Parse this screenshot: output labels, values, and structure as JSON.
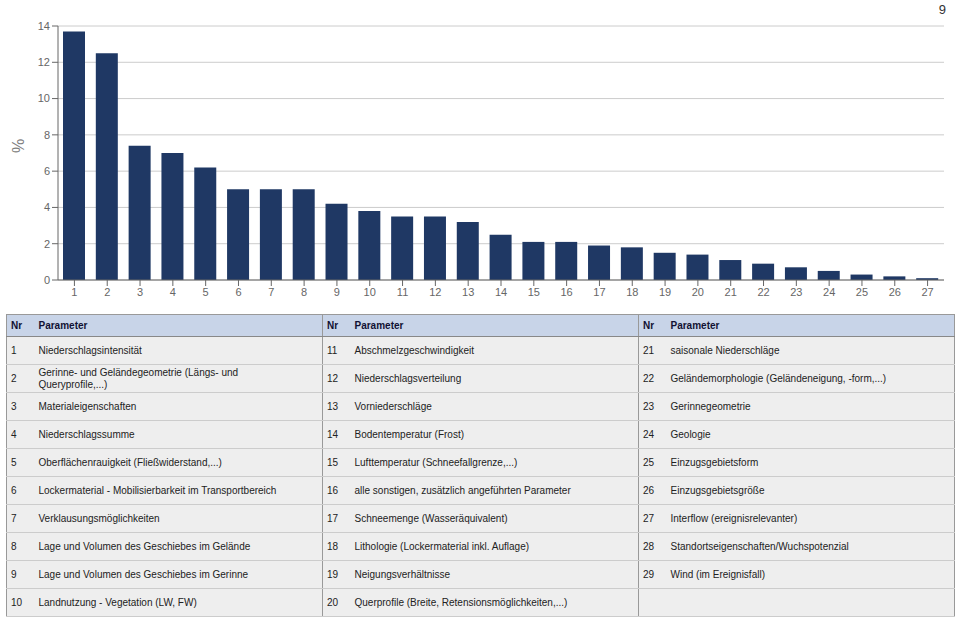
{
  "chart_data": {
    "type": "bar",
    "categories": [
      "1",
      "2",
      "3",
      "4",
      "5",
      "6",
      "7",
      "8",
      "9",
      "10",
      "11",
      "12",
      "13",
      "14",
      "15",
      "16",
      "17",
      "18",
      "19",
      "20",
      "21",
      "22",
      "23",
      "24",
      "25",
      "26",
      "27"
    ],
    "values": [
      13.7,
      12.5,
      7.4,
      7.0,
      6.2,
      5.0,
      5.0,
      5.0,
      4.2,
      3.8,
      3.5,
      3.5,
      3.2,
      2.5,
      2.1,
      2.1,
      1.9,
      1.8,
      1.5,
      1.4,
      1.1,
      0.9,
      0.7,
      0.5,
      0.3,
      0.2,
      0.1
    ],
    "color": "#1F3864",
    "ylabel": "%",
    "ylim": [
      0,
      14
    ],
    "yticks": [
      0,
      2,
      4,
      6,
      8,
      10,
      12,
      14
    ],
    "grid": true,
    "annotations": [
      "9"
    ],
    "table": {
      "columns": [
        "Nr",
        "Parameter"
      ],
      "rows": [
        [
          "1",
          "Niederschlagsintensität",
          "11",
          "Abschmelzgeschwindigkeit",
          "21",
          "saisonale Niederschläge"
        ],
        [
          "2",
          "Gerinne- und Geländegeometrie (Längs- und\nQueryprofile,...)",
          "12",
          "Niederschlagsverteilung",
          "22",
          "Geländemorphologie (Geländeneigung, -form,...)"
        ],
        [
          "3",
          "Materialeigenschaften",
          "13",
          "Vorniederschläge",
          "23",
          "Gerinnegeometrie"
        ],
        [
          "4",
          "Niederschlagssumme",
          "14",
          "Bodentemperatur (Frost)",
          "24",
          "Geologie"
        ],
        [
          "5",
          "Oberflächenrauigkeit (Fließwiderstand,...)",
          "15",
          "Lufttemperatur (Schneefallgrenze,...)",
          "25",
          "Einzugsgebietsform"
        ],
        [
          "6",
          "Lockermaterial - Mobilisierbarkeit im Transportbereich",
          "16",
          "alle sonstigen, zusätzlich angeführten Parameter",
          "26",
          "Einzugsgebietsgröße"
        ],
        [
          "7",
          "Verklausungsmöglichkeiten",
          "17",
          "Schneemenge (Wasseräquivalent)",
          "27",
          "Interflow (ereignisrelevanter)"
        ],
        [
          "8",
          "Lage und Volumen des Geschiebes im Gelände",
          "18",
          "Lithologie (Lockermaterial inkl. Auflage)",
          "28",
          "Standortseigenschaften/Wuchspotenzial"
        ],
        [
          "9",
          "Lage und Volumen des Geschiebes im Gerinne",
          "19",
          "Neigungsverhältnisse",
          "29",
          "Wind (im Ereignisfall)"
        ],
        [
          "10",
          "Landnutzung - Vegetation (LW, FW)",
          "20",
          "Querprofile (Breite, Retensionsmöglichkeiten,...)"
        ]
      ]
    }
  }
}
